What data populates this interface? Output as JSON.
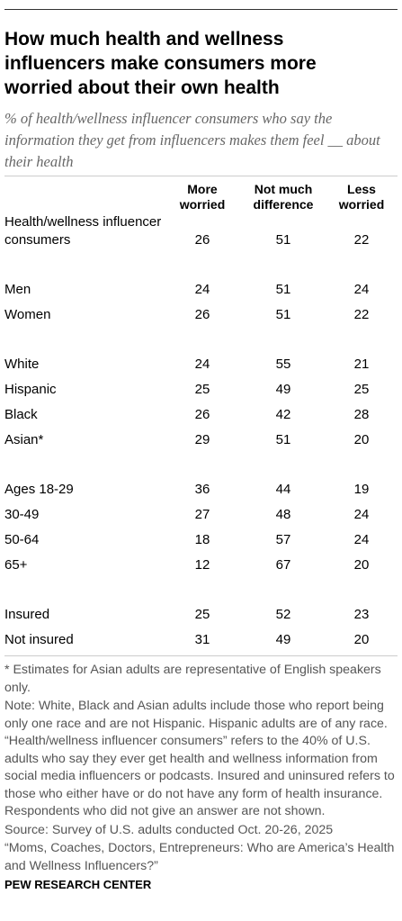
{
  "header": {
    "title": "How much health and wellness influencers make consumers more worried about their own health",
    "subtitle": "% of health/wellness influencer consumers who say the information they get from influencers makes them feel __ about their health"
  },
  "table": {
    "columns": [
      "More worried",
      "Not much difference",
      "Less worried"
    ],
    "groups": [
      {
        "rows": [
          {
            "label": "Health/wellness influencer consumers",
            "values": [
              26,
              51,
              22
            ]
          }
        ]
      },
      {
        "rows": [
          {
            "label": "Men",
            "values": [
              24,
              51,
              24
            ]
          },
          {
            "label": "Women",
            "values": [
              26,
              51,
              22
            ]
          }
        ]
      },
      {
        "rows": [
          {
            "label": "White",
            "values": [
              24,
              55,
              21
            ]
          },
          {
            "label": "Hispanic",
            "values": [
              25,
              49,
              25
            ]
          },
          {
            "label": "Black",
            "values": [
              26,
              42,
              28
            ]
          },
          {
            "label": "Asian*",
            "values": [
              29,
              51,
              20
            ]
          }
        ]
      },
      {
        "rows": [
          {
            "label": "Ages 18-29",
            "values": [
              36,
              44,
              19
            ]
          },
          {
            "label": "30-49",
            "values": [
              27,
              48,
              24
            ]
          },
          {
            "label": "50-64",
            "values": [
              18,
              57,
              24
            ]
          },
          {
            "label": "65+",
            "values": [
              12,
              67,
              20
            ]
          }
        ]
      },
      {
        "rows": [
          {
            "label": "Insured",
            "values": [
              25,
              52,
              23
            ]
          },
          {
            "label": "Not insured",
            "values": [
              31,
              49,
              20
            ]
          }
        ]
      }
    ]
  },
  "notes": [
    "* Estimates for Asian adults are representative of English speakers only.",
    "Note: White, Black and Asian adults include those who report being only one race and are not Hispanic. Hispanic adults are of any race. “Health/wellness influencer consumers” refers to the 40% of U.S. adults who say they ever get health and wellness information from social media influencers or podcasts. Insured and uninsured refers to those who either have or do not have any form of health insurance. Respondents who did not give an answer are not shown.",
    "Source: Survey of U.S. adults conducted Oct. 20-26, 2025",
    "“Moms, Coaches, Doctors, Entrepreneurs: Who are America’s Health and Wellness Influencers?”"
  ],
  "footer": "PEW RESEARCH CENTER"
}
